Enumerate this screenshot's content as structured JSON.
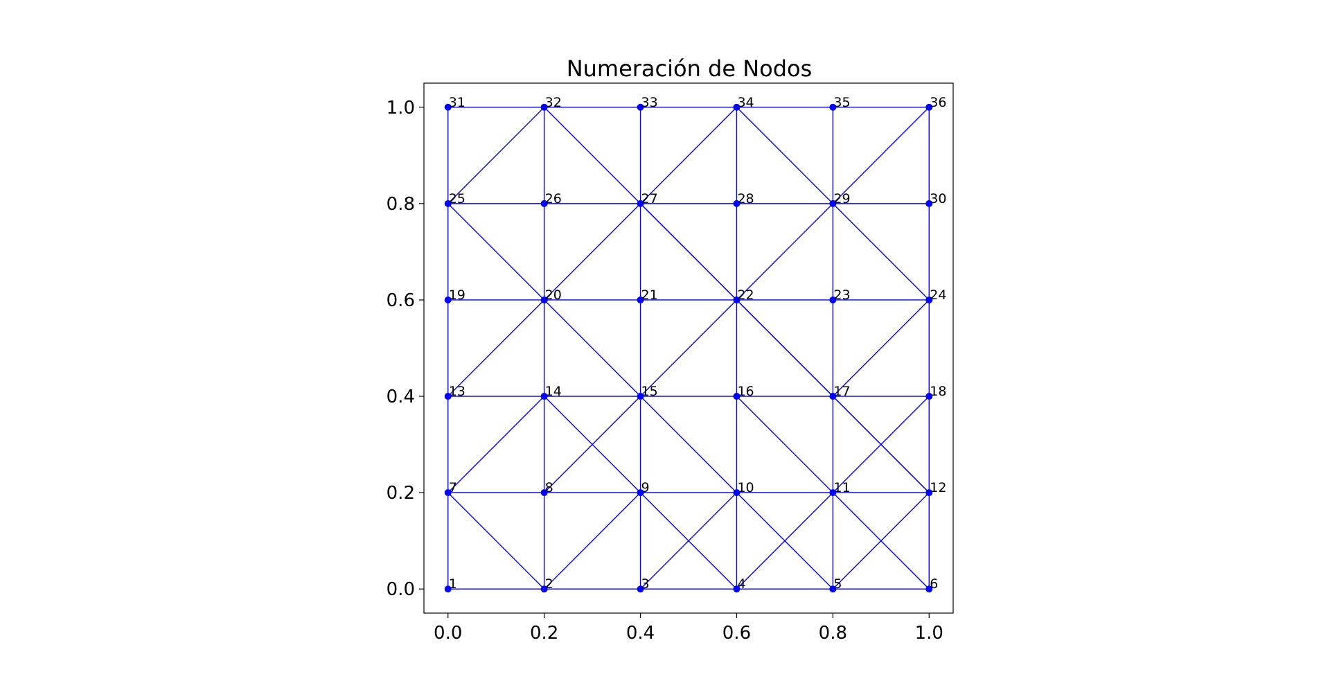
{
  "chart_data": {
    "type": "scatter",
    "title": "Numeración de Nodos",
    "xlabel": "",
    "ylabel": "",
    "xlim": [
      -0.05,
      1.05
    ],
    "ylim": [
      -0.05,
      1.05
    ],
    "xticks": [
      "0.0",
      "0.2",
      "0.4",
      "0.6",
      "0.8",
      "1.0"
    ],
    "yticks": [
      "0.0",
      "0.2",
      "0.4",
      "0.6",
      "0.8",
      "1.0"
    ],
    "xtick_values": [
      0.0,
      0.2,
      0.4,
      0.6,
      0.8,
      1.0
    ],
    "ytick_values": [
      0.0,
      0.2,
      0.4,
      0.6,
      0.8,
      1.0
    ],
    "grid": false,
    "color": "#0000ff",
    "nodes": [
      {
        "id": 1,
        "x": 0.0,
        "y": 0.0
      },
      {
        "id": 2,
        "x": 0.2,
        "y": 0.0
      },
      {
        "id": 3,
        "x": 0.4,
        "y": 0.0
      },
      {
        "id": 4,
        "x": 0.6,
        "y": 0.0
      },
      {
        "id": 5,
        "x": 0.8,
        "y": 0.0
      },
      {
        "id": 6,
        "x": 1.0,
        "y": 0.0
      },
      {
        "id": 7,
        "x": 0.0,
        "y": 0.2
      },
      {
        "id": 8,
        "x": 0.2,
        "y": 0.2
      },
      {
        "id": 9,
        "x": 0.4,
        "y": 0.2
      },
      {
        "id": 10,
        "x": 0.6,
        "y": 0.2
      },
      {
        "id": 11,
        "x": 0.8,
        "y": 0.2
      },
      {
        "id": 12,
        "x": 1.0,
        "y": 0.2
      },
      {
        "id": 13,
        "x": 0.0,
        "y": 0.4
      },
      {
        "id": 14,
        "x": 0.2,
        "y": 0.4
      },
      {
        "id": 15,
        "x": 0.4,
        "y": 0.4
      },
      {
        "id": 16,
        "x": 0.6,
        "y": 0.4
      },
      {
        "id": 17,
        "x": 0.8,
        "y": 0.4
      },
      {
        "id": 18,
        "x": 1.0,
        "y": 0.4
      },
      {
        "id": 19,
        "x": 0.0,
        "y": 0.6
      },
      {
        "id": 20,
        "x": 0.2,
        "y": 0.6
      },
      {
        "id": 21,
        "x": 0.4,
        "y": 0.6
      },
      {
        "id": 22,
        "x": 0.6,
        "y": 0.6
      },
      {
        "id": 23,
        "x": 0.8,
        "y": 0.6
      },
      {
        "id": 24,
        "x": 1.0,
        "y": 0.6
      },
      {
        "id": 25,
        "x": 0.0,
        "y": 0.8
      },
      {
        "id": 26,
        "x": 0.2,
        "y": 0.8
      },
      {
        "id": 27,
        "x": 0.4,
        "y": 0.8
      },
      {
        "id": 28,
        "x": 0.6,
        "y": 0.8
      },
      {
        "id": 29,
        "x": 0.8,
        "y": 0.8
      },
      {
        "id": 30,
        "x": 1.0,
        "y": 0.8
      },
      {
        "id": 31,
        "x": 0.0,
        "y": 1.0
      },
      {
        "id": 32,
        "x": 0.2,
        "y": 1.0
      },
      {
        "id": 33,
        "x": 0.4,
        "y": 1.0
      },
      {
        "id": 34,
        "x": 0.6,
        "y": 1.0
      },
      {
        "id": 35,
        "x": 0.8,
        "y": 1.0
      },
      {
        "id": 36,
        "x": 1.0,
        "y": 1.0
      }
    ],
    "edges": [
      [
        1,
        2
      ],
      [
        2,
        3
      ],
      [
        3,
        4
      ],
      [
        4,
        5
      ],
      [
        5,
        6
      ],
      [
        7,
        8
      ],
      [
        8,
        9
      ],
      [
        9,
        10
      ],
      [
        10,
        11
      ],
      [
        11,
        12
      ],
      [
        13,
        14
      ],
      [
        14,
        15
      ],
      [
        15,
        16
      ],
      [
        16,
        17
      ],
      [
        17,
        18
      ],
      [
        19,
        20
      ],
      [
        20,
        21
      ],
      [
        21,
        22
      ],
      [
        22,
        23
      ],
      [
        23,
        24
      ],
      [
        25,
        26
      ],
      [
        26,
        27
      ],
      [
        27,
        28
      ],
      [
        28,
        29
      ],
      [
        29,
        30
      ],
      [
        31,
        32
      ],
      [
        32,
        33
      ],
      [
        33,
        34
      ],
      [
        34,
        35
      ],
      [
        35,
        36
      ],
      [
        1,
        7
      ],
      [
        7,
        13
      ],
      [
        13,
        19
      ],
      [
        19,
        25
      ],
      [
        25,
        31
      ],
      [
        2,
        8
      ],
      [
        8,
        14
      ],
      [
        14,
        20
      ],
      [
        20,
        26
      ],
      [
        26,
        32
      ],
      [
        3,
        9
      ],
      [
        9,
        15
      ],
      [
        15,
        21
      ],
      [
        21,
        27
      ],
      [
        27,
        33
      ],
      [
        4,
        10
      ],
      [
        10,
        16
      ],
      [
        16,
        22
      ],
      [
        22,
        28
      ],
      [
        28,
        34
      ],
      [
        5,
        11
      ],
      [
        11,
        17
      ],
      [
        17,
        23
      ],
      [
        23,
        29
      ],
      [
        29,
        35
      ],
      [
        6,
        12
      ],
      [
        12,
        18
      ],
      [
        18,
        24
      ],
      [
        24,
        30
      ],
      [
        30,
        36
      ],
      [
        7,
        2
      ],
      [
        2,
        9
      ],
      [
        9,
        4
      ],
      [
        4,
        11
      ],
      [
        11,
        6
      ],
      [
        12,
        5
      ],
      [
        5,
        10
      ],
      [
        10,
        3
      ],
      [
        12,
        17
      ],
      [
        17,
        22
      ],
      [
        22,
        27
      ],
      [
        27,
        32
      ],
      [
        32,
        25
      ],
      [
        25,
        20
      ],
      [
        20,
        15
      ],
      [
        15,
        10
      ],
      [
        7,
        14
      ],
      [
        14,
        9
      ],
      [
        8,
        15
      ],
      [
        15,
        22
      ],
      [
        22,
        29
      ],
      [
        29,
        36
      ],
      [
        13,
        20
      ],
      [
        20,
        27
      ],
      [
        27,
        34
      ],
      [
        16,
        11
      ],
      [
        11,
        18
      ],
      [
        29,
        24
      ],
      [
        24,
        17
      ],
      [
        34,
        29
      ],
      [
        27,
        22
      ],
      [
        22,
        17
      ],
      [
        17,
        12
      ]
    ]
  }
}
